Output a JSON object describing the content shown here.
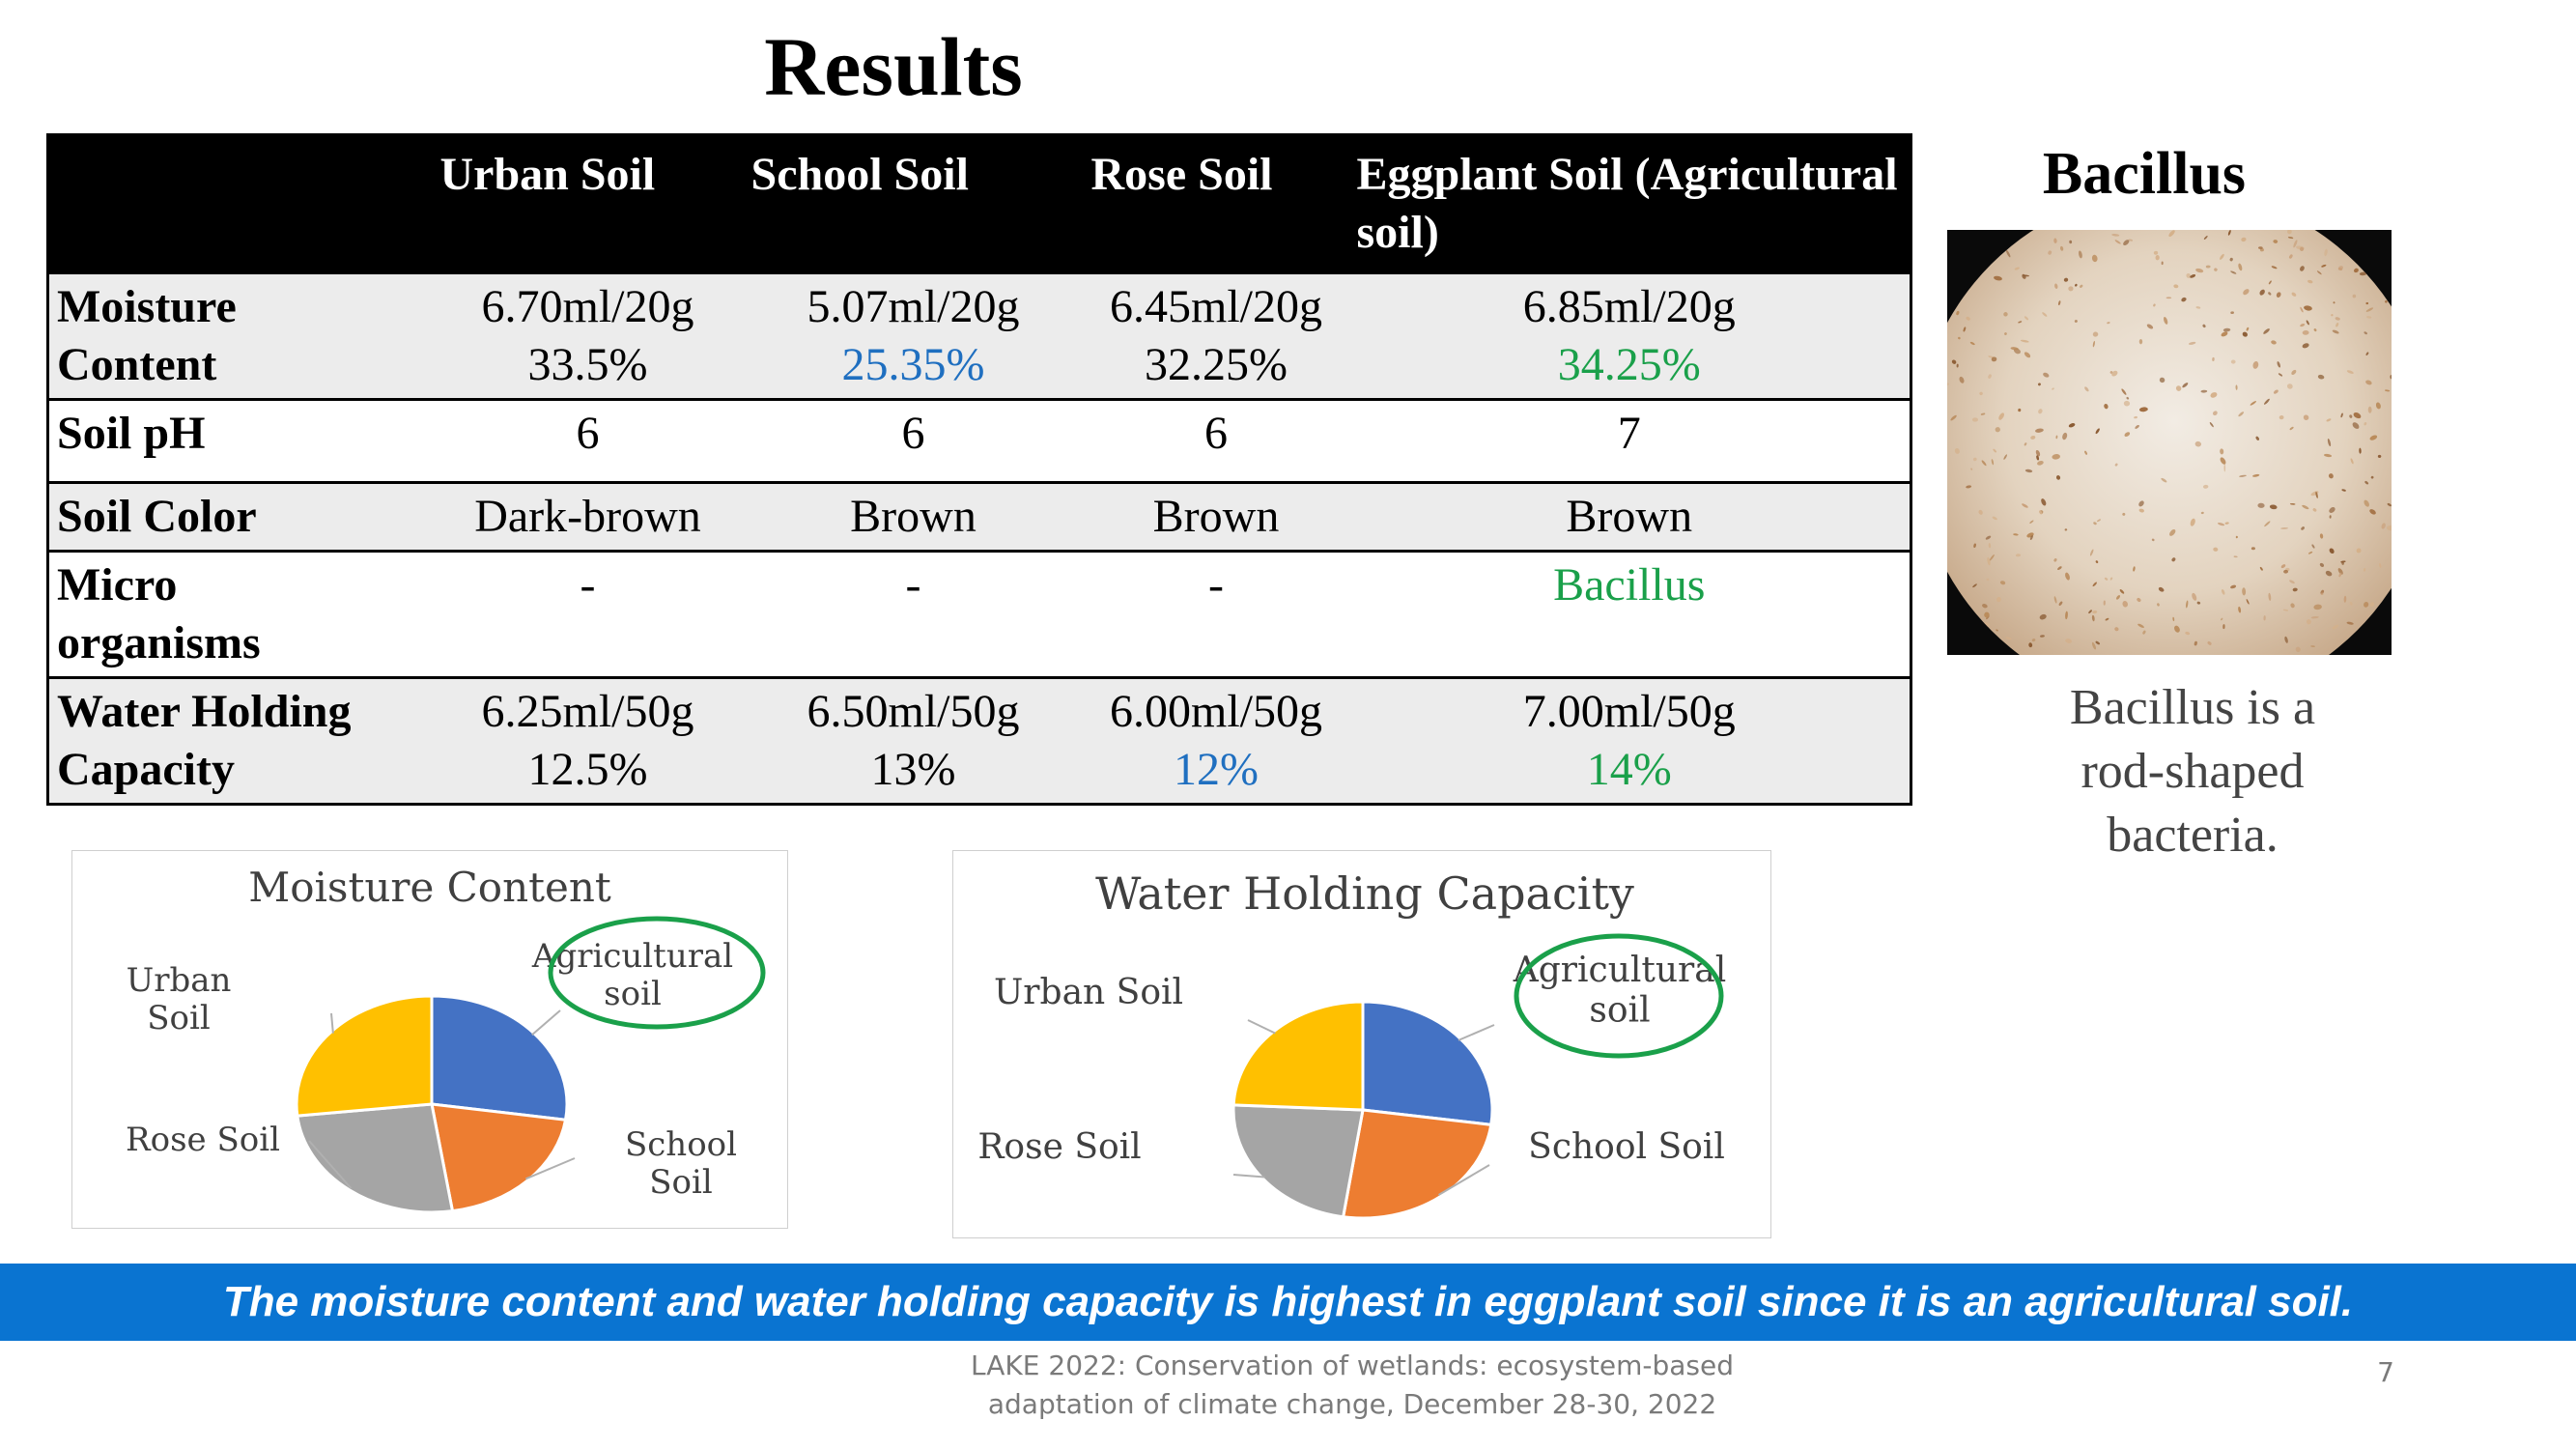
{
  "title": "Results",
  "table": {
    "headers": [
      "",
      "Urban Soil",
      "School Soil",
      "Rose Soil",
      "Eggplant Soil (Agricultural soil)"
    ],
    "rows": [
      {
        "label": [
          "Moisture",
          "Content"
        ],
        "cells": [
          [
            "6.70ml/20g",
            "33.5%"
          ],
          [
            "5.07ml/20g",
            "25.35%"
          ],
          [
            "6.45ml/20g",
            "32.25%"
          ],
          [
            "6.85ml/20g",
            "34.25%"
          ]
        ]
      },
      {
        "label": [
          "Soil pH"
        ],
        "cells": [
          [
            "6"
          ],
          [
            "6"
          ],
          [
            "6"
          ],
          [
            "7"
          ]
        ]
      },
      {
        "label": [
          "Soil Color"
        ],
        "cells": [
          [
            "Dark-brown"
          ],
          [
            "Brown"
          ],
          [
            "Brown"
          ],
          [
            "Brown"
          ]
        ]
      },
      {
        "label": [
          "Micro",
          "organisms"
        ],
        "cells": [
          [
            "-"
          ],
          [
            "-"
          ],
          [
            "-"
          ],
          [
            "Bacillus"
          ]
        ]
      },
      {
        "label": [
          "Water Holding",
          "Capacity"
        ],
        "cells": [
          [
            "6.25ml/50g",
            "12.5%"
          ],
          [
            "6.50ml/50g",
            "13%"
          ],
          [
            "6.00ml/50g",
            "12%"
          ],
          [
            "7.00ml/50g",
            "14%"
          ]
        ]
      }
    ]
  },
  "bacillus": {
    "title": "Bacillus",
    "caption_lines": [
      "Bacillus is a",
      "rod-shaped",
      "bacteria."
    ]
  },
  "chart_data": [
    {
      "type": "pie",
      "title": "Moisture Content",
      "categories": [
        "Agricultural soil",
        "School Soil",
        "Rose Soil",
        "Urban Soil"
      ],
      "label_lines": [
        [
          "Agricultural",
          "soil"
        ],
        [
          "School",
          "Soil"
        ],
        [
          "Rose Soil"
        ],
        [
          "Urban",
          "Soil"
        ]
      ],
      "values": [
        34.25,
        25.35,
        32.25,
        33.5
      ],
      "colors": [
        "#4472c4",
        "#ed7d31",
        "#a5a5a5",
        "#ffc000"
      ],
      "highlight": "Agricultural soil",
      "highlight_color": "#1aa04a"
    },
    {
      "type": "pie",
      "title": "Water Holding Capacity",
      "categories": [
        "Agricultural soil",
        "School Soil",
        "Rose Soil",
        "Urban Soil"
      ],
      "label_lines": [
        [
          "Agricultural",
          "soil"
        ],
        [
          "School Soil"
        ],
        [
          "Rose Soil"
        ],
        [
          "Urban Soil"
        ]
      ],
      "values": [
        14,
        13,
        12,
        12.5
      ],
      "colors": [
        "#4472c4",
        "#ed7d31",
        "#a5a5a5",
        "#ffc000"
      ],
      "highlight": "Agricultural soil",
      "highlight_color": "#1aa04a"
    }
  ],
  "banner": {
    "text": "The moisture content and water holding capacity is highest in eggplant soil since it is an agricultural soil.",
    "color": "#0a74d1"
  },
  "footer": {
    "lines": [
      "LAKE 2022: Conservation of wetlands: ecosystem-based",
      "adaptation of climate change, December 28-30, 2022"
    ],
    "page_number": "7"
  },
  "colors": {
    "blue_value": "#1f6fc0",
    "green_value": "#1aa04a"
  }
}
